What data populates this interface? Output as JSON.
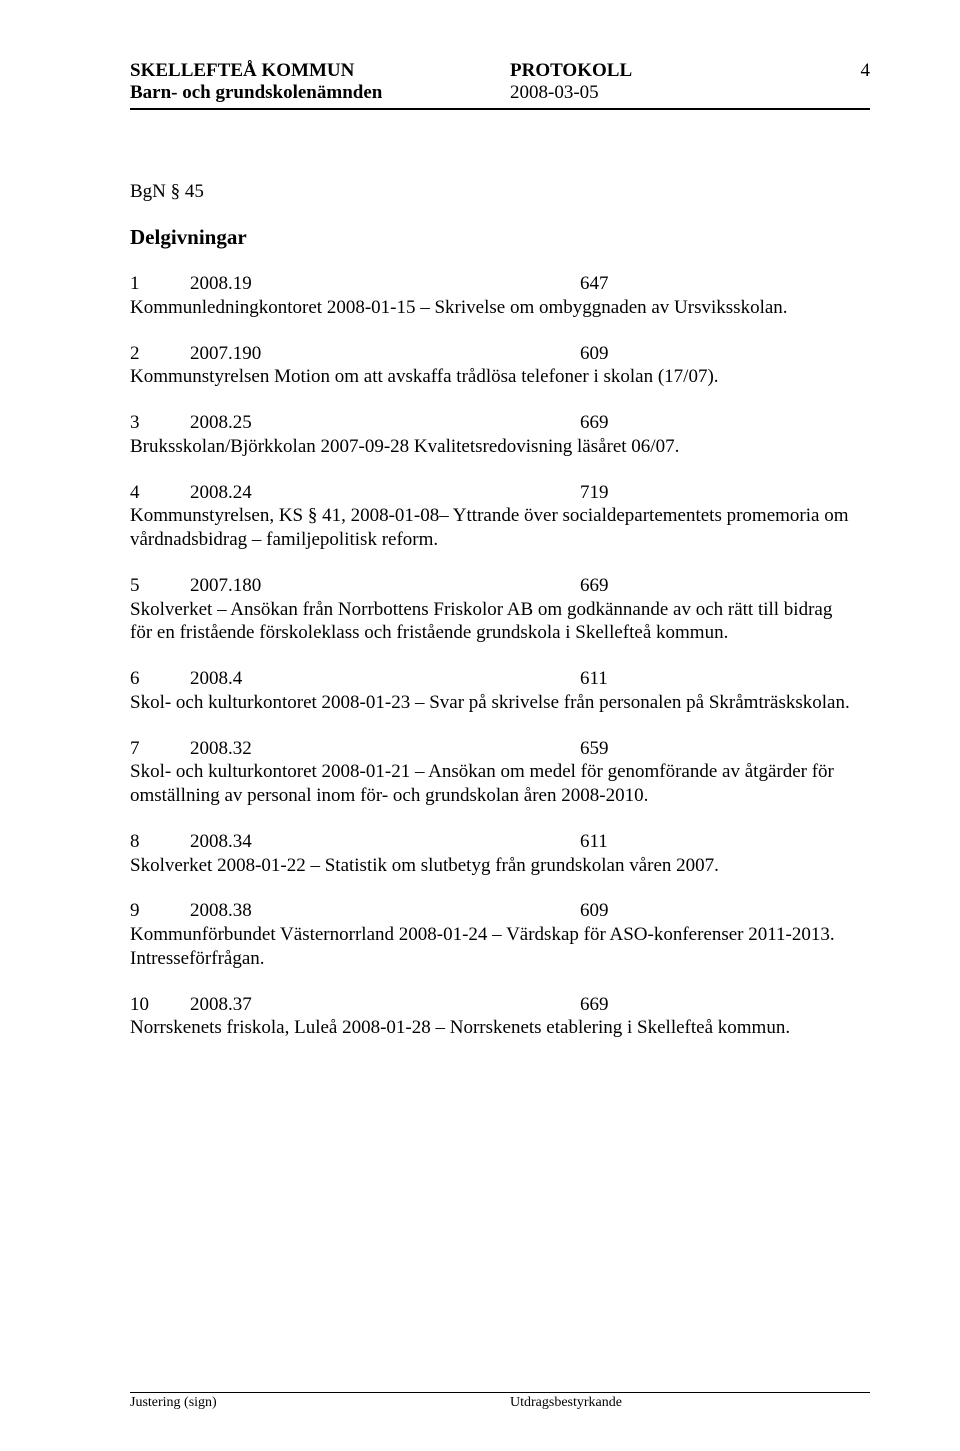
{
  "header": {
    "org": "SKELLEFTEÅ KOMMUN",
    "doc_type": "PROTOKOLL",
    "page_num": "4",
    "committee": "Barn- och grundskolenämnden",
    "date": "2008-03-05"
  },
  "section": {
    "id": "BgN § 45",
    "title": "Delgivningar"
  },
  "items": [
    {
      "num": "1",
      "code": "2008.19",
      "ref": "647",
      "text": "Kommunledningkontoret 2008-01-15 – Skrivelse om ombyggnaden av Ursviksskolan."
    },
    {
      "num": "2",
      "code": "2007.190",
      "ref": "609",
      "text": "Kommunstyrelsen Motion om att avskaffa trådlösa telefoner i skolan (17/07)."
    },
    {
      "num": "3",
      "code": "2008.25",
      "ref": "669",
      "text": "Bruksskolan/Björkkolan 2007-09-28 Kvalitetsredovisning läsåret 06/07."
    },
    {
      "num": "4",
      "code": "2008.24",
      "ref": "719",
      "text": "Kommunstyrelsen, KS § 41, 2008-01-08– Yttrande över socialdepartementets promemoria om vårdnadsbidrag – familjepolitisk reform."
    },
    {
      "num": "5",
      "code": "2007.180",
      "ref": "669",
      "text": "Skolverket – Ansökan från Norrbottens Friskolor AB om godkännande av och rätt till bidrag för en fristående förskoleklass och fristående grundskola i Skellefteå kommun."
    },
    {
      "num": "6",
      "code": "2008.4",
      "ref": "611",
      "text": "Skol- och kulturkontoret 2008-01-23 – Svar på skrivelse från personalen på Skråmträskskolan."
    },
    {
      "num": "7",
      "code": "2008.32",
      "ref": "659",
      "text": "Skol- och kulturkontoret 2008-01-21 – Ansökan om medel för genomförande av åtgärder för omställning av personal inom för- och grundskolan åren 2008-2010."
    },
    {
      "num": "8",
      "code": "2008.34",
      "ref": "611",
      "text": "Skolverket 2008-01-22 – Statistik om slutbetyg från grundskolan våren 2007."
    },
    {
      "num": "9",
      "code": "2008.38",
      "ref": "609",
      "text": "Kommunförbundet Västernorrland 2008-01-24 – Värdskap för ASO-konferenser 2011-2013. Intresseförfrågan."
    },
    {
      "num": "10",
      "code": "2008.37",
      "ref": "669",
      "text": "Norrskenets friskola, Luleå 2008-01-28 – Norrskenets etablering i Skellefteå kommun."
    }
  ],
  "footer": {
    "left": "Justering (sign)",
    "right": "Utdragsbestyrkande"
  }
}
